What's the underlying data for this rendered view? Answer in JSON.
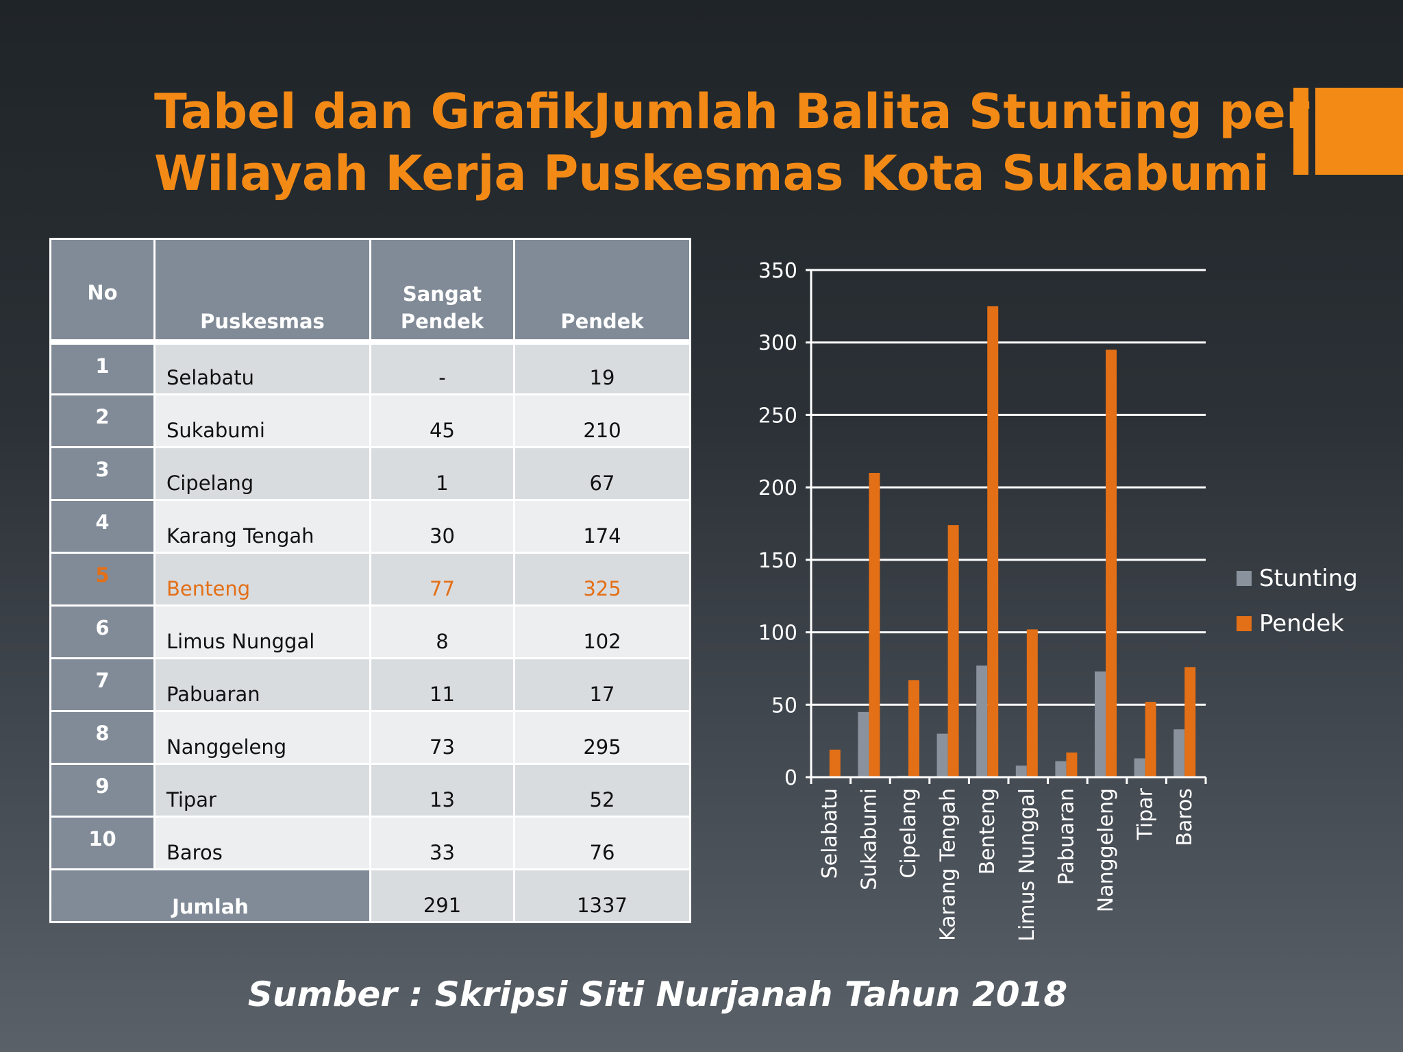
{
  "colors": {
    "accent": "#f38a16",
    "title": "#f38a16",
    "stunting": "#8a939d",
    "pendek": "#e36f16",
    "highlight": "#e36f16"
  },
  "title": {
    "line1": "Tabel dan GrafikJumlah Balita Stunting per",
    "line2": "Wilayah Kerja Puskesmas Kota Sukabumi"
  },
  "table": {
    "headers": {
      "no": "No",
      "puskesmas": "Puskesmas",
      "sangat_pendek_1": "Sangat",
      "sangat_pendek_2": "Pendek",
      "pendek": "Pendek"
    },
    "rows": [
      {
        "no": "1",
        "name": "Selabatu",
        "sangat_pendek": "-",
        "pendek": "19"
      },
      {
        "no": "2",
        "name": "Sukabumi",
        "sangat_pendek": "45",
        "pendek": "210"
      },
      {
        "no": "3",
        "name": "Cipelang",
        "sangat_pendek": "1",
        "pendek": "67"
      },
      {
        "no": "4",
        "name": "Karang Tengah",
        "sangat_pendek": "30",
        "pendek": "174"
      },
      {
        "no": "5",
        "name": "Benteng",
        "sangat_pendek": "77",
        "pendek": "325"
      },
      {
        "no": "6",
        "name": "Limus Nunggal",
        "sangat_pendek": "8",
        "pendek": "102"
      },
      {
        "no": "7",
        "name": "Pabuaran",
        "sangat_pendek": "11",
        "pendek": "17"
      },
      {
        "no": "8",
        "name": "Nanggeleng",
        "sangat_pendek": "73",
        "pendek": "295"
      },
      {
        "no": "9",
        "name": "Tipar",
        "sangat_pendek": "13",
        "pendek": "52"
      },
      {
        "no": "10",
        "name": "Baros",
        "sangat_pendek": "33",
        "pendek": "76"
      }
    ],
    "total": {
      "label": "Jumlah",
      "sangat_pendek": "291",
      "pendek": "1337"
    }
  },
  "chart_data": {
    "type": "bar",
    "categories": [
      "Selabatu",
      "Sukabumi",
      "Cipelang",
      "Karang Tengah",
      "Benteng",
      "Limus Nunggal",
      "Pabuaran",
      "Nanggeleng",
      "Tipar",
      "Baros"
    ],
    "series": [
      {
        "name": "Stunting",
        "values": [
          0,
          45,
          1,
          30,
          77,
          8,
          11,
          73,
          13,
          33
        ]
      },
      {
        "name": "Pendek",
        "values": [
          19,
          210,
          67,
          174,
          325,
          102,
          17,
          295,
          52,
          76
        ]
      }
    ],
    "ylim": [
      0,
      350
    ],
    "yticks": [
      0,
      50,
      100,
      150,
      200,
      250,
      300,
      350
    ],
    "grid": true,
    "legend": "right"
  },
  "source": "Sumber : Skripsi Siti Nurjanah Tahun 2018"
}
